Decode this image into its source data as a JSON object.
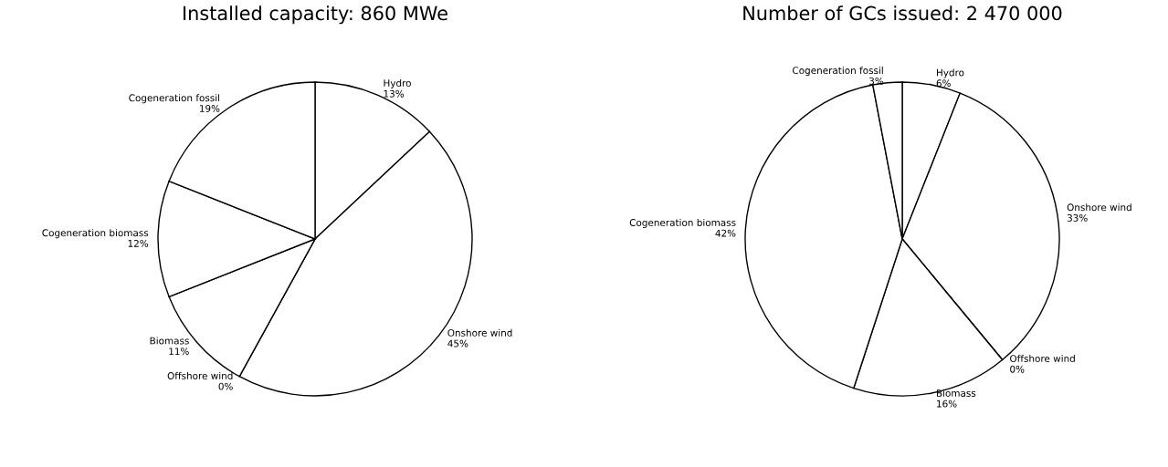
{
  "chart_data": [
    {
      "type": "pie",
      "title": "Installed capacity: 860 MWe",
      "categories": [
        "Hydro",
        "Onshore wind",
        "Offshore wind",
        "Biomass",
        "Cogeneration biomass",
        "Cogeneration fossil"
      ],
      "values": [
        13,
        45,
        0,
        11,
        12,
        19
      ],
      "value_labels": [
        "13%",
        "45%",
        "0%",
        "11%",
        "12%",
        "19%"
      ],
      "colors": [
        "#ffffff",
        "#ffffff",
        "#ffffff",
        "#ffffff",
        "#ffffff",
        "#ffffff"
      ]
    },
    {
      "type": "pie",
      "title": "Number of GCs issued: 2 470 000",
      "categories": [
        "Hydro",
        "Onshore wind",
        "Offshore wind",
        "Biomass",
        "Cogeneration biomass",
        "Cogeneration fossil"
      ],
      "values": [
        6,
        33,
        0,
        16,
        42,
        3
      ],
      "value_labels": [
        "6%",
        "33%",
        "0%",
        "16%",
        "42%",
        "3%"
      ],
      "colors": [
        "#ffffff",
        "#ffffff",
        "#ffffff",
        "#ffffff",
        "#ffffff",
        "#ffffff"
      ]
    }
  ]
}
